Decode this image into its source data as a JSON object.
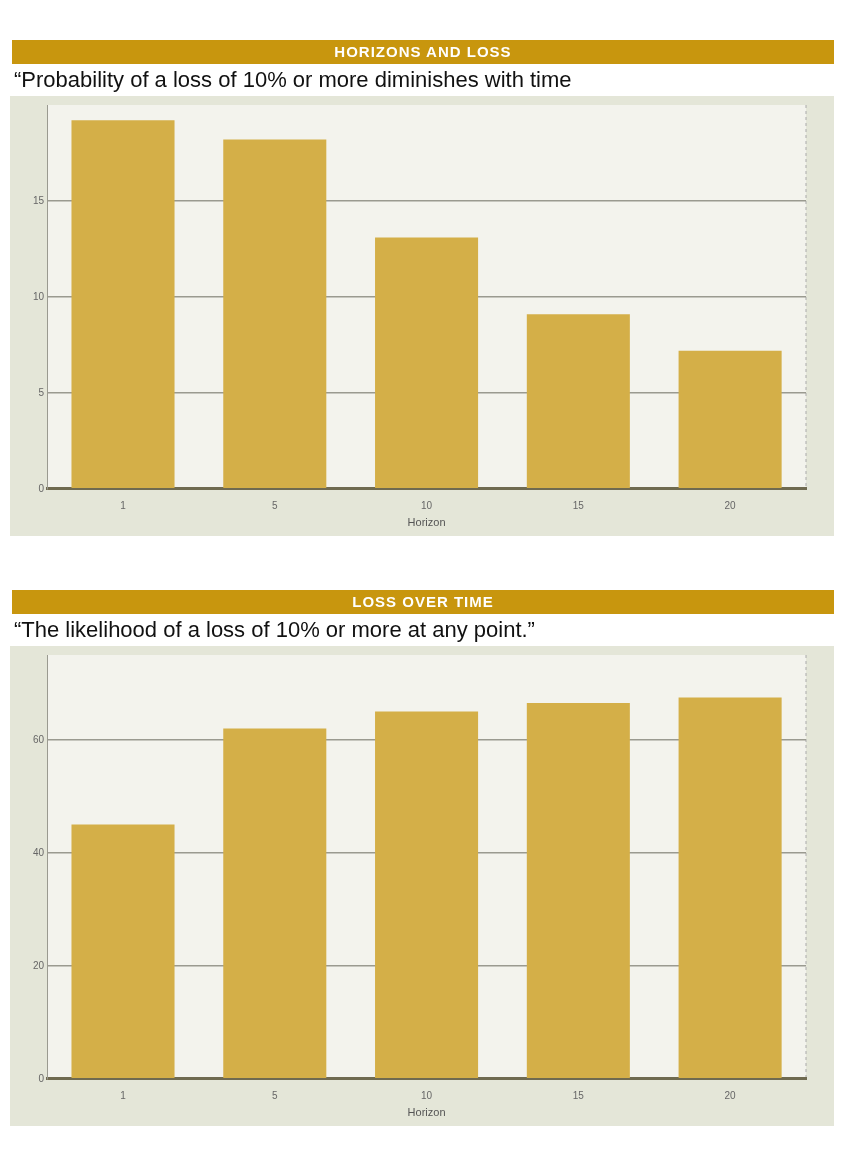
{
  "chart_data": [
    {
      "type": "bar",
      "title": "HORIZONS AND LOSS",
      "subtitle": "“Probability of a loss of 10% or more diminishes with time",
      "xlabel": "Horizon",
      "categories": [
        "1",
        "5",
        "10",
        "15",
        "20"
      ],
      "values": [
        19.2,
        18.2,
        13.1,
        9.1,
        7.2
      ],
      "color": "#d4af48",
      "ylim": [
        0,
        20
      ],
      "yticks": [
        0,
        5,
        10,
        15
      ],
      "grid": "y"
    },
    {
      "type": "bar",
      "title": "LOSS OVER TIME",
      "subtitle": "“The likelihood of a loss of 10% or more at any point.”",
      "xlabel": "Horizon",
      "categories": [
        "1",
        "5",
        "10",
        "15",
        "20"
      ],
      "values": [
        45,
        62,
        65,
        66.5,
        67.5
      ],
      "color": "#d4af48",
      "ylim": [
        0,
        75
      ],
      "yticks": [
        0,
        20,
        40,
        60
      ],
      "grid": "y"
    }
  ]
}
